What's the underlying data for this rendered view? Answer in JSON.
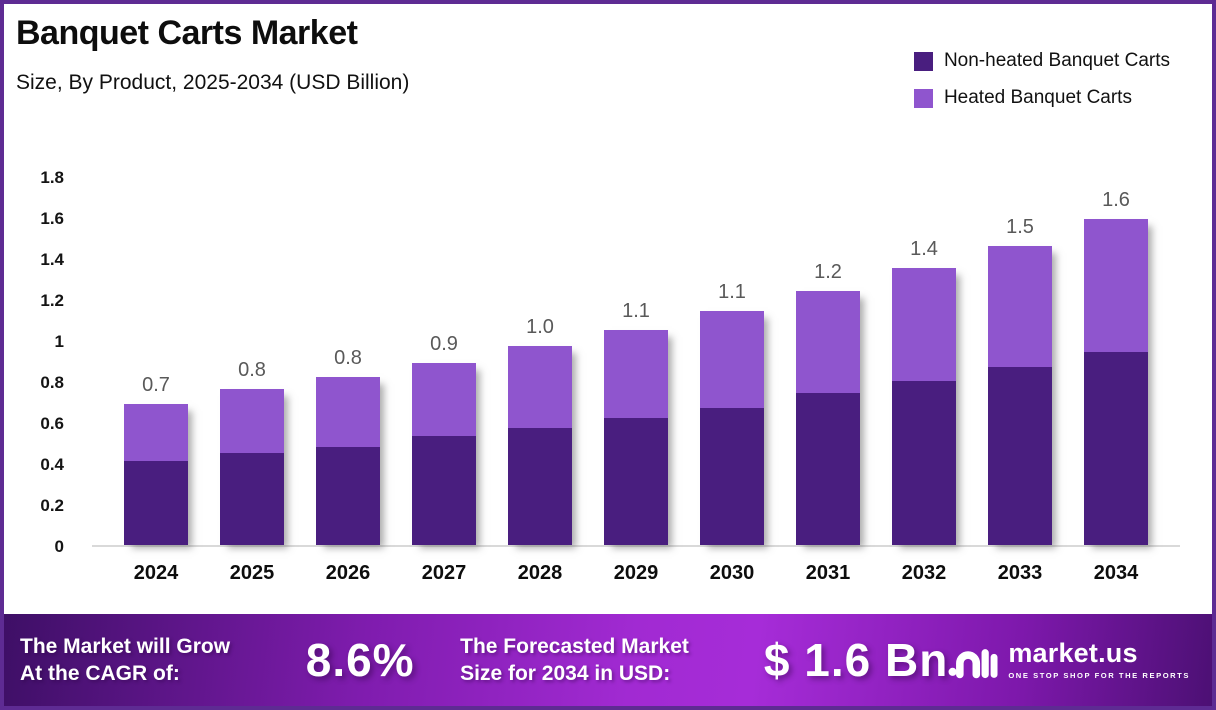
{
  "header": {
    "title": "Banquet Carts Market",
    "subtitle": "Size, By Product, 2025-2034 (USD Billion)"
  },
  "legend": [
    {
      "label": "Non-heated Banquet Carts",
      "color": "#491e7f"
    },
    {
      "label": "Heated Banquet Carts",
      "color": "#8f55ce"
    }
  ],
  "chart_data": {
    "type": "bar",
    "stacked": true,
    "title": "Banquet Carts Market",
    "subtitle": "Size, By Product, 2025-2034 (USD Billion)",
    "xlabel": "",
    "ylabel": "",
    "unit": "USD Billion",
    "grid": false,
    "legend_position": "top-right",
    "categories": [
      "2024",
      "2025",
      "2026",
      "2027",
      "2028",
      "2029",
      "2030",
      "2031",
      "2032",
      "2033",
      "2034"
    ],
    "series": [
      {
        "name": "Non-heated Banquet Carts",
        "color": "#491e7f",
        "values": [
          0.41,
          0.45,
          0.48,
          0.53,
          0.57,
          0.62,
          0.67,
          0.74,
          0.8,
          0.87,
          0.94
        ]
      },
      {
        "name": "Heated Banquet Carts",
        "color": "#8f55ce",
        "values": [
          0.28,
          0.31,
          0.34,
          0.36,
          0.4,
          0.43,
          0.47,
          0.5,
          0.55,
          0.59,
          0.65
        ]
      }
    ],
    "total_labels": [
      "0.7",
      "0.8",
      "0.8",
      "0.9",
      "1.0",
      "1.1",
      "1.1",
      "1.2",
      "1.4",
      "1.5",
      "1.6"
    ],
    "y_ticks": [
      "0",
      "0.2",
      "0.4",
      "0.6",
      "0.8",
      "1",
      "1.2",
      "1.4",
      "1.6",
      "1.8"
    ],
    "ylim": [
      0,
      1.8
    ]
  },
  "banner": {
    "cagr_label_line1": "The Market will Grow",
    "cagr_label_line2": "At the CAGR of:",
    "cagr_value": "8.6%",
    "forecast_label_line1": "The Forecasted Market",
    "forecast_label_line2": "Size for 2034 in USD:",
    "forecast_value": "$ 1.6 Bn",
    "logo_text": "market.us",
    "logo_tagline": "ONE STOP SHOP FOR THE REPORTS"
  }
}
